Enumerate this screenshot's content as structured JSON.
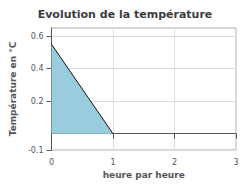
{
  "chart_data": {
    "type": "line",
    "title": "Evolution de la température",
    "xlabel": "heure par heure",
    "ylabel": "Température en °C",
    "x": [
      0,
      1
    ],
    "series": [
      {
        "type": "area",
        "color": "#99ccdd",
        "values": [
          0.55,
          0.0
        ]
      },
      {
        "type": "line",
        "color": "#111111",
        "values": [
          0.55,
          0.0
        ]
      }
    ],
    "xlim": [
      0,
      3
    ],
    "ylim": [
      -0.1,
      0.65
    ],
    "xticks": [
      0,
      1,
      2,
      3
    ],
    "yticks": [
      -0.1,
      0.2,
      0.4,
      0.6
    ],
    "grid": true
  }
}
